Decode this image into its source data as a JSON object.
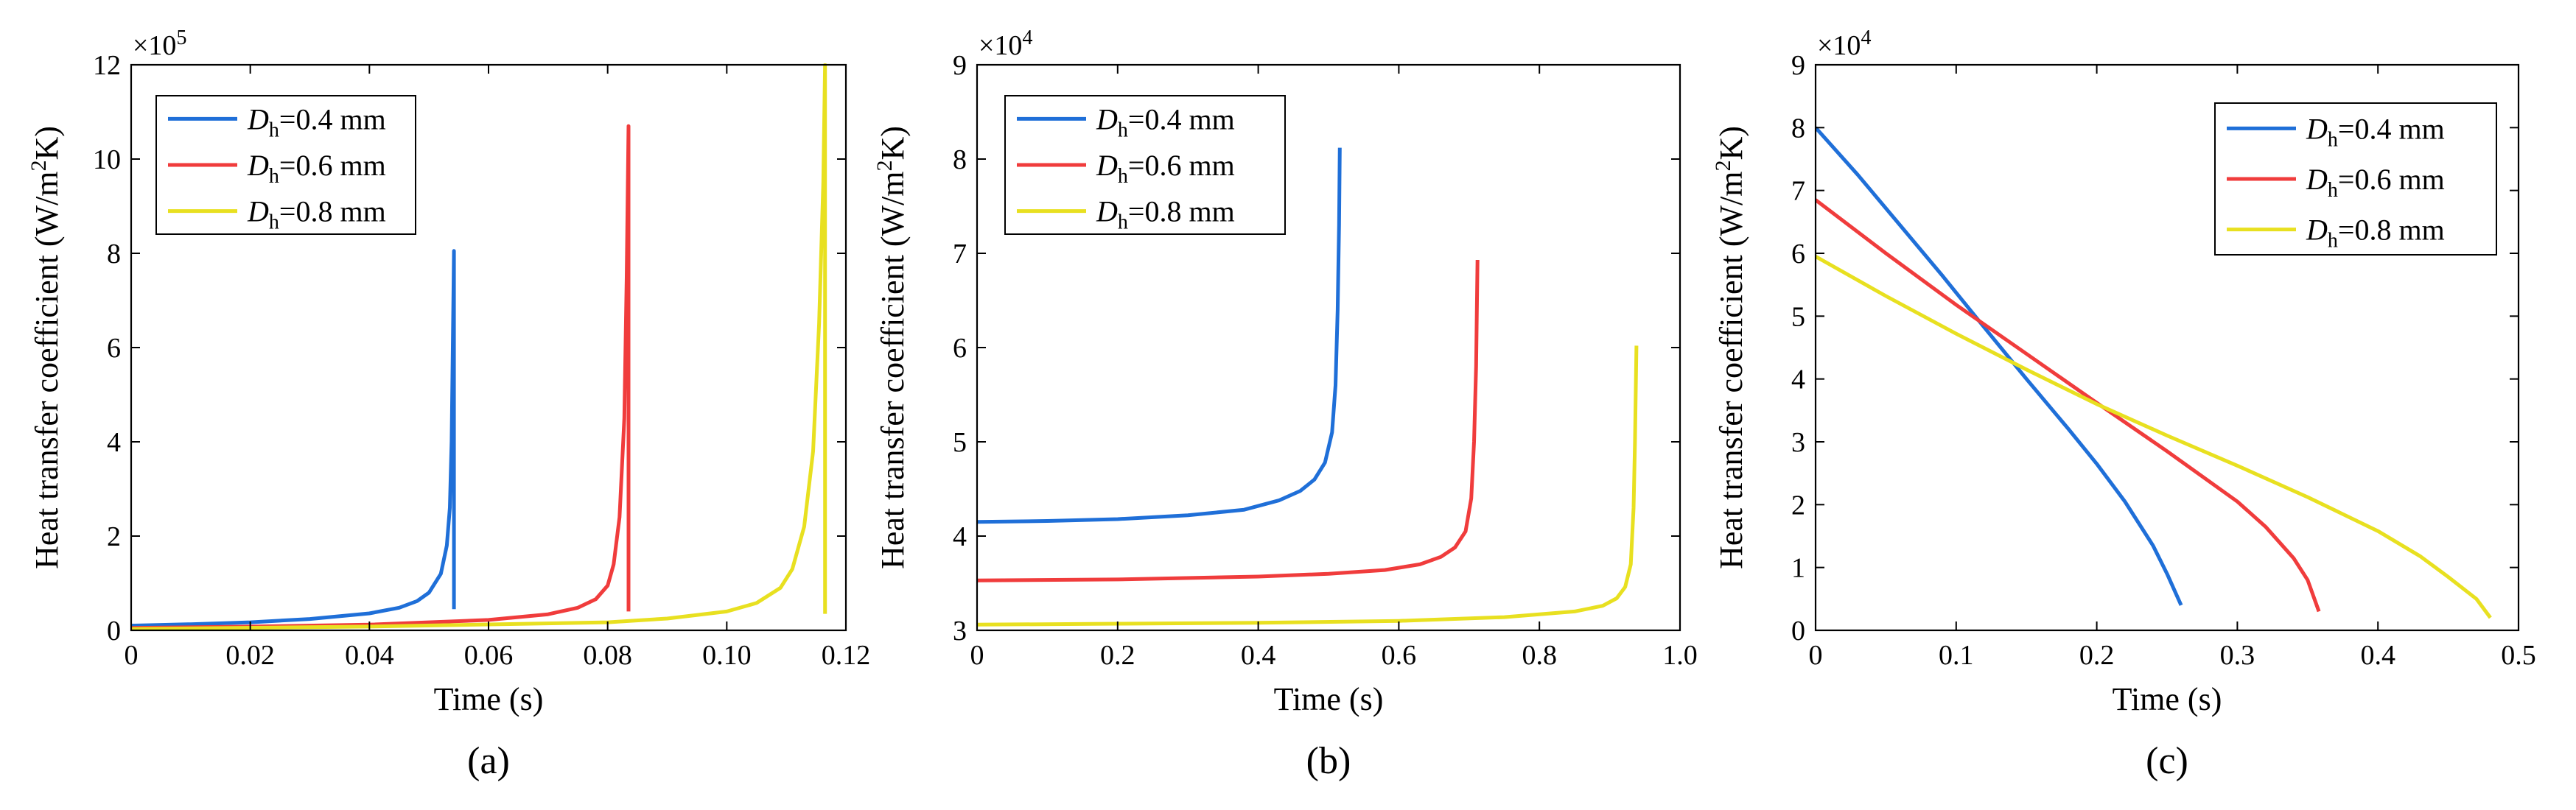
{
  "chart_data": [
    {
      "type": "line",
      "panel_label": "(a)",
      "xlabel": "Time (s)",
      "ylabel": "Heat transfer coefficient (W/m²K)",
      "ylabel_parts": {
        "main": "Heat transfer coefficient (W/m",
        "sup": "2",
        "end": "K)"
      },
      "y_multiplier": {
        "base": "×10",
        "exp": "5"
      },
      "xlim": [
        0,
        0.12
      ],
      "ylim": [
        0,
        12
      ],
      "xticks": [
        0,
        0.02,
        0.04,
        0.06,
        0.08,
        0.1,
        0.12
      ],
      "xtick_labels": [
        "0",
        "0.02",
        "0.04",
        "0.06",
        "0.08",
        "0.10",
        "0.12"
      ],
      "yticks": [
        0,
        2,
        4,
        6,
        8,
        10,
        12
      ],
      "ytick_labels": [
        "0",
        "2",
        "4",
        "6",
        "8",
        "10",
        "12"
      ],
      "legend_position": "top-left",
      "series": [
        {
          "name": "Dh=0.4 mm",
          "label_main": "D",
          "label_sub": "h",
          "label_rest": "=0.4 mm",
          "color": "#1f6fd8",
          "points": [
            [
              0,
              0.1
            ],
            [
              0.01,
              0.13
            ],
            [
              0.02,
              0.17
            ],
            [
              0.03,
              0.24
            ],
            [
              0.04,
              0.36
            ],
            [
              0.045,
              0.48
            ],
            [
              0.048,
              0.62
            ],
            [
              0.05,
              0.8
            ],
            [
              0.052,
              1.2
            ],
            [
              0.053,
              1.8
            ],
            [
              0.0535,
              2.6
            ],
            [
              0.0538,
              4.0
            ],
            [
              0.054,
              6.0
            ],
            [
              0.0542,
              8.05
            ],
            [
              0.0542,
              0.45
            ]
          ]
        },
        {
          "name": "Dh=0.6 mm",
          "label_main": "D",
          "label_sub": "h",
          "label_rest": "=0.6 mm",
          "color": "#f03c3c",
          "points": [
            [
              0,
              0.05
            ],
            [
              0.02,
              0.08
            ],
            [
              0.04,
              0.12
            ],
            [
              0.06,
              0.22
            ],
            [
              0.07,
              0.34
            ],
            [
              0.075,
              0.48
            ],
            [
              0.078,
              0.66
            ],
            [
              0.08,
              0.95
            ],
            [
              0.081,
              1.4
            ],
            [
              0.082,
              2.4
            ],
            [
              0.0828,
              4.5
            ],
            [
              0.0832,
              7.5
            ],
            [
              0.0835,
              10.7
            ],
            [
              0.0835,
              0.4
            ]
          ]
        },
        {
          "name": "Dh=0.8 mm",
          "label_main": "D",
          "label_sub": "h",
          "label_rest": "=0.8 mm",
          "color": "#e8e020",
          "points": [
            [
              0,
              0.03
            ],
            [
              0.04,
              0.08
            ],
            [
              0.08,
              0.17
            ],
            [
              0.09,
              0.25
            ],
            [
              0.1,
              0.4
            ],
            [
              0.105,
              0.58
            ],
            [
              0.109,
              0.9
            ],
            [
              0.111,
              1.3
            ],
            [
              0.113,
              2.2
            ],
            [
              0.1145,
              3.8
            ],
            [
              0.1155,
              6.5
            ],
            [
              0.1162,
              9.5
            ],
            [
              0.1165,
              12.0
            ],
            [
              0.1165,
              0.35
            ]
          ]
        }
      ]
    },
    {
      "type": "line",
      "panel_label": "(b)",
      "xlabel": "Time (s)",
      "ylabel": "Heat transfer coefficient (W/m²K)",
      "ylabel_parts": {
        "main": "Heat transfer coefficient (W/m",
        "sup": "2",
        "end": "K)"
      },
      "y_multiplier": {
        "base": "×10",
        "exp": "4"
      },
      "xlim": [
        0,
        1.0
      ],
      "ylim": [
        3,
        9
      ],
      "xticks": [
        0,
        0.2,
        0.4,
        0.6,
        0.8,
        1.0
      ],
      "xtick_labels": [
        "0",
        "0.2",
        "0.4",
        "0.6",
        "0.8",
        "1.0"
      ],
      "yticks": [
        3,
        4,
        5,
        6,
        7,
        8,
        9
      ],
      "ytick_labels": [
        "3",
        "4",
        "5",
        "6",
        "7",
        "8",
        "9"
      ],
      "legend_position": "top-left",
      "series": [
        {
          "name": "Dh=0.4 mm",
          "label_main": "D",
          "label_sub": "h",
          "label_rest": "=0.4 mm",
          "color": "#1f6fd8",
          "points": [
            [
              0,
              4.15
            ],
            [
              0.1,
              4.16
            ],
            [
              0.2,
              4.18
            ],
            [
              0.3,
              4.22
            ],
            [
              0.38,
              4.28
            ],
            [
              0.43,
              4.38
            ],
            [
              0.46,
              4.48
            ],
            [
              0.48,
              4.6
            ],
            [
              0.495,
              4.78
            ],
            [
              0.505,
              5.1
            ],
            [
              0.51,
              5.6
            ],
            [
              0.513,
              6.4
            ],
            [
              0.515,
              7.3
            ],
            [
              0.516,
              8.12
            ]
          ]
        },
        {
          "name": "Dh=0.6 mm",
          "label_main": "D",
          "label_sub": "h",
          "label_rest": "=0.6 mm",
          "color": "#f03c3c",
          "points": [
            [
              0,
              3.53
            ],
            [
              0.2,
              3.54
            ],
            [
              0.4,
              3.57
            ],
            [
              0.5,
              3.6
            ],
            [
              0.58,
              3.64
            ],
            [
              0.63,
              3.7
            ],
            [
              0.66,
              3.78
            ],
            [
              0.68,
              3.88
            ],
            [
              0.695,
              4.05
            ],
            [
              0.703,
              4.4
            ],
            [
              0.707,
              5.0
            ],
            [
              0.71,
              5.8
            ],
            [
              0.712,
              6.93
            ]
          ]
        },
        {
          "name": "Dh=0.8 mm",
          "label_main": "D",
          "label_sub": "h",
          "label_rest": "=0.8 mm",
          "color": "#e8e020",
          "points": [
            [
              0,
              3.06
            ],
            [
              0.2,
              3.07
            ],
            [
              0.4,
              3.08
            ],
            [
              0.6,
              3.1
            ],
            [
              0.75,
              3.14
            ],
            [
              0.85,
              3.2
            ],
            [
              0.89,
              3.26
            ],
            [
              0.91,
              3.34
            ],
            [
              0.922,
              3.46
            ],
            [
              0.93,
              3.7
            ],
            [
              0.934,
              4.3
            ],
            [
              0.936,
              5.0
            ],
            [
              0.938,
              6.02
            ]
          ]
        }
      ]
    },
    {
      "type": "line",
      "panel_label": "(c)",
      "xlabel": "Time (s)",
      "ylabel": "Heat transfer coefficient (W/m²K)",
      "ylabel_parts": {
        "main": "Heat transfer coefficient (W/m",
        "sup": "2",
        "end": "K)"
      },
      "y_multiplier": {
        "base": "×10",
        "exp": "4"
      },
      "xlim": [
        0,
        0.5
      ],
      "ylim": [
        0,
        9
      ],
      "xticks": [
        0,
        0.1,
        0.2,
        0.3,
        0.4,
        0.5
      ],
      "xtick_labels": [
        "0",
        "0.1",
        "0.2",
        "0.3",
        "0.4",
        "0.5"
      ],
      "yticks": [
        0,
        1,
        2,
        3,
        4,
        5,
        6,
        7,
        8,
        9
      ],
      "ytick_labels": [
        "0",
        "1",
        "2",
        "3",
        "4",
        "5",
        "6",
        "7",
        "8",
        "9"
      ],
      "legend_position": "top-right",
      "series": [
        {
          "name": "Dh=0.4 mm",
          "label_main": "D",
          "label_sub": "h",
          "label_rest": "=0.4 mm",
          "color": "#1f6fd8",
          "points": [
            [
              0,
              8.0
            ],
            [
              0.03,
              7.25
            ],
            [
              0.06,
              6.45
            ],
            [
              0.09,
              5.65
            ],
            [
              0.12,
              4.82
            ],
            [
              0.15,
              4.0
            ],
            [
              0.18,
              3.2
            ],
            [
              0.2,
              2.65
            ],
            [
              0.22,
              2.05
            ],
            [
              0.24,
              1.35
            ],
            [
              0.25,
              0.9
            ],
            [
              0.26,
              0.4
            ]
          ]
        },
        {
          "name": "Dh=0.6 mm",
          "label_main": "D",
          "label_sub": "h",
          "label_rest": "=0.6 mm",
          "color": "#f03c3c",
          "points": [
            [
              0,
              6.85
            ],
            [
              0.05,
              6.0
            ],
            [
              0.1,
              5.18
            ],
            [
              0.15,
              4.4
            ],
            [
              0.2,
              3.62
            ],
            [
              0.25,
              2.85
            ],
            [
              0.3,
              2.05
            ],
            [
              0.32,
              1.65
            ],
            [
              0.34,
              1.15
            ],
            [
              0.35,
              0.8
            ],
            [
              0.358,
              0.3
            ]
          ]
        },
        {
          "name": "Dh=0.8 mm",
          "label_main": "D",
          "label_sub": "h",
          "label_rest": "=0.8 mm",
          "color": "#e8e020",
          "points": [
            [
              0,
              5.95
            ],
            [
              0.05,
              5.32
            ],
            [
              0.1,
              4.72
            ],
            [
              0.15,
              4.15
            ],
            [
              0.2,
              3.6
            ],
            [
              0.25,
              3.1
            ],
            [
              0.3,
              2.62
            ],
            [
              0.35,
              2.12
            ],
            [
              0.4,
              1.58
            ],
            [
              0.43,
              1.18
            ],
            [
              0.45,
              0.85
            ],
            [
              0.47,
              0.5
            ],
            [
              0.48,
              0.2
            ]
          ]
        }
      ]
    }
  ]
}
